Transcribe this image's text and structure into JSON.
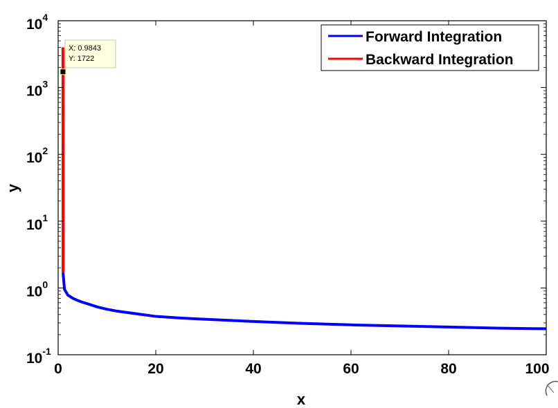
{
  "chart_data": {
    "type": "line",
    "title": "",
    "xlabel": "x",
    "ylabel": "y",
    "xlim": [
      0,
      100
    ],
    "ylim": [
      0.1,
      10000
    ],
    "yscale": "log",
    "x_ticks": [
      0,
      20,
      40,
      60,
      80,
      100
    ],
    "y_ticks": [
      {
        "value": 0.1,
        "base": "10",
        "exp": "-1"
      },
      {
        "value": 1,
        "base": "10",
        "exp": "0"
      },
      {
        "value": 10,
        "base": "10",
        "exp": "1"
      },
      {
        "value": 100,
        "base": "10",
        "exp": "2"
      },
      {
        "value": 1000,
        "base": "10",
        "exp": "3"
      },
      {
        "value": 10000,
        "base": "10",
        "exp": "4"
      }
    ],
    "grid": false,
    "legend_position": "top-right",
    "series": [
      {
        "name": "Forward Integration",
        "color": "#0000ff",
        "x": [
          1,
          1.3,
          1.7,
          2,
          3,
          4,
          5,
          6,
          8,
          10,
          12,
          15,
          20,
          25,
          30,
          40,
          50,
          60,
          70,
          80,
          90,
          100
        ],
        "y": [
          1.7,
          0.95,
          0.85,
          0.78,
          0.7,
          0.65,
          0.61,
          0.58,
          0.52,
          0.48,
          0.45,
          0.42,
          0.375,
          0.355,
          0.34,
          0.315,
          0.295,
          0.28,
          0.27,
          0.26,
          0.25,
          0.245
        ]
      },
      {
        "name": "Backward Integration",
        "color": "#ff0000",
        "x": [
          1,
          0.998,
          0.993,
          0.9843,
          0.97
        ],
        "y": [
          1.7,
          10,
          200,
          1722,
          4000
        ]
      }
    ],
    "datatip": {
      "x_label": "X: 0.9843",
      "y_label": "Y: 1722",
      "x": 0.9843,
      "y": 1722
    }
  }
}
